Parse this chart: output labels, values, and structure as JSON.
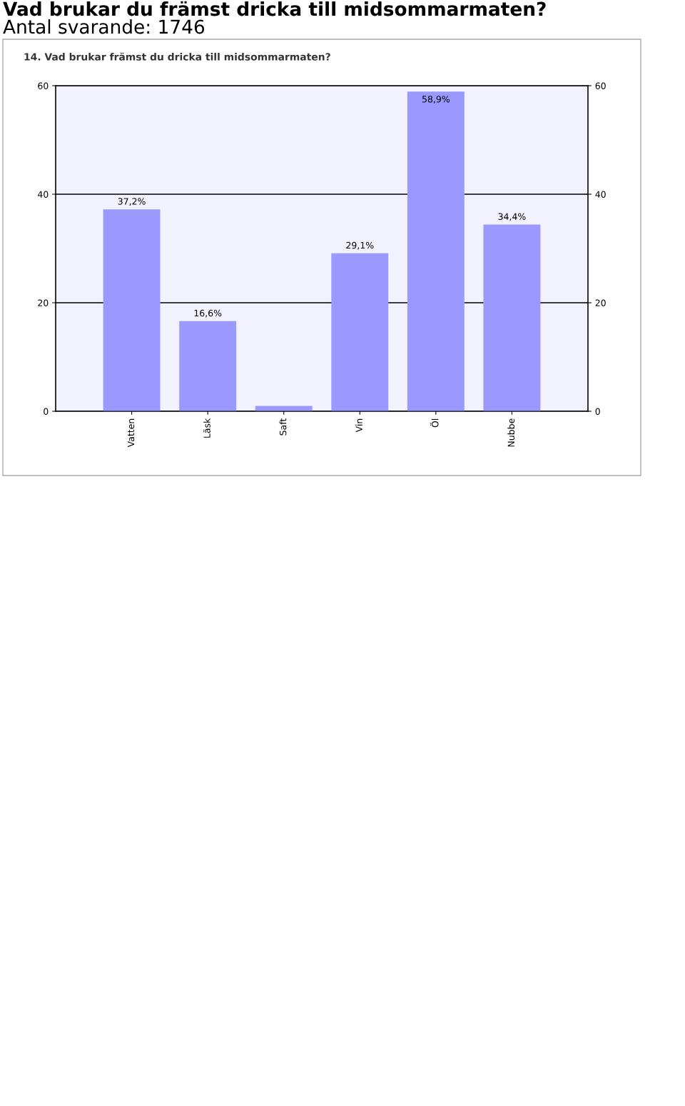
{
  "chart_data": {
    "type": "bar",
    "title": "Vad brukar du främst dricka till midsommarmaten?",
    "subtitle": "Antal svarande: 1746",
    "annotations": [
      "14. Vad brukar främst du dricka till midsommarmaten?"
    ],
    "categories": [
      "Vatten",
      "Läsk",
      "Saft",
      "Vin",
      "Öl",
      "Nubbe"
    ],
    "values": [
      37.2,
      16.6,
      1,
      29.1,
      58.9,
      34.4
    ],
    "value_labels": [
      "37,2%",
      "16,6%",
      null,
      "29,1%",
      "58,9%",
      "34,4%"
    ],
    "color": "#9999ff",
    "ylim": [
      0,
      60
    ],
    "yticks": [
      0,
      20,
      40,
      60
    ],
    "y2lim": [
      0,
      60
    ],
    "y2ticks": [
      0,
      20,
      40,
      60
    ],
    "grid": "y"
  }
}
